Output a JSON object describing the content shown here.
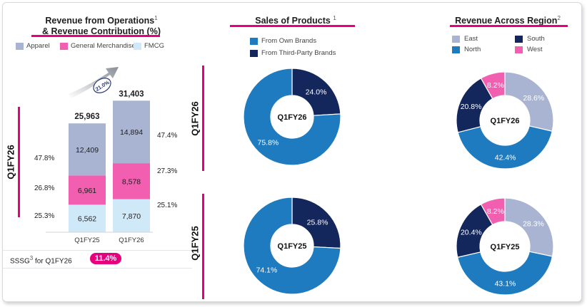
{
  "revenue_panel": {
    "title_line1": "Revenue from Operations",
    "title_sup": "1",
    "title_line2": "& Revenue Contribution (%)",
    "side_label": "Q1FY26",
    "growth": "21.0%",
    "ssg_prefix": "SSSG",
    "ssg_sup": "3",
    "ssg_suffix": " for Q1FY26",
    "ssg_value": "11.4%",
    "legend": [
      {
        "label": "Apparel",
        "color": "#a9b4d2"
      },
      {
        "label": "General Merchandise",
        "color": "#f25fb0"
      },
      {
        "label": "FMCG",
        "color": "#cfe9f8"
      }
    ],
    "left_pcts": [
      "47.8%",
      "26.8%",
      "25.3%"
    ],
    "right_pcts": [
      "47.4%",
      "27.3%",
      "25.1%"
    ]
  },
  "sales_panel": {
    "title": "Sales of Products",
    "title_sup": "1",
    "legend": [
      {
        "label": "From Own Brands",
        "color": "#1f7bbf"
      },
      {
        "label": "From Third-Party Brands",
        "color": "#14275c"
      }
    ],
    "side_labels": [
      "Q1FY26",
      "Q1FY25"
    ]
  },
  "region_panel": {
    "title": "Revenue Across Region",
    "title_sup": "2",
    "legend": [
      {
        "label": "East",
        "color": "#a9b4d2"
      },
      {
        "label": "South",
        "color": "#14275c"
      },
      {
        "label": "North",
        "color": "#1f7bbf"
      },
      {
        "label": "West",
        "color": "#f25fb0"
      }
    ]
  },
  "chart_data": [
    {
      "type": "bar",
      "stacked": true,
      "title": "Revenue from Operations & Revenue Contribution (%)",
      "categories": [
        "Q1FY25",
        "Q1FY26"
      ],
      "series": [
        {
          "name": "FMCG",
          "values": [
            6562,
            7870
          ],
          "labels": [
            "6,562",
            "7,870"
          ]
        },
        {
          "name": "General Merchandise",
          "values": [
            6961,
            8578
          ],
          "labels": [
            "6,961",
            "8,578"
          ]
        },
        {
          "name": "Apparel",
          "values": [
            12409,
            14894
          ],
          "labels": [
            "12,409",
            "14,894"
          ]
        }
      ],
      "totals": [
        25963,
        31403
      ],
      "total_labels": [
        "25,963",
        "31,403"
      ]
    },
    {
      "type": "pie",
      "donut": true,
      "title": "Sales of Products - Q1FY26",
      "center_label": "Q1FY26",
      "slices": [
        {
          "name": "From Third-Party Brands",
          "value": 24.0,
          "label": "24.0%"
        },
        {
          "name": "From Own Brands",
          "value": 75.8,
          "label": "75.8%"
        }
      ]
    },
    {
      "type": "pie",
      "donut": true,
      "title": "Sales of Products - Q1FY25",
      "center_label": "Q1FY25",
      "slices": [
        {
          "name": "From Third-Party Brands",
          "value": 25.8,
          "label": "25.8%"
        },
        {
          "name": "From Own Brands",
          "value": 74.1,
          "label": "74.1%"
        }
      ]
    },
    {
      "type": "pie",
      "donut": true,
      "title": "Revenue Across Region - Q1FY26",
      "center_label": "Q1FY26",
      "slices": [
        {
          "name": "East",
          "value": 28.6,
          "label": "28.6%"
        },
        {
          "name": "North",
          "value": 42.4,
          "label": "42.4%"
        },
        {
          "name": "South",
          "value": 20.8,
          "label": "20.8%"
        },
        {
          "name": "West",
          "value": 8.2,
          "label": "8.2%"
        }
      ]
    },
    {
      "type": "pie",
      "donut": true,
      "title": "Revenue Across Region - Q1FY25",
      "center_label": "Q1FY25",
      "slices": [
        {
          "name": "East",
          "value": 28.3,
          "label": "28.3%"
        },
        {
          "name": "North",
          "value": 43.1,
          "label": "43.1%"
        },
        {
          "name": "South",
          "value": 20.4,
          "label": "20.4%"
        },
        {
          "name": "West",
          "value": 8.2,
          "label": "8.2%"
        }
      ]
    }
  ]
}
